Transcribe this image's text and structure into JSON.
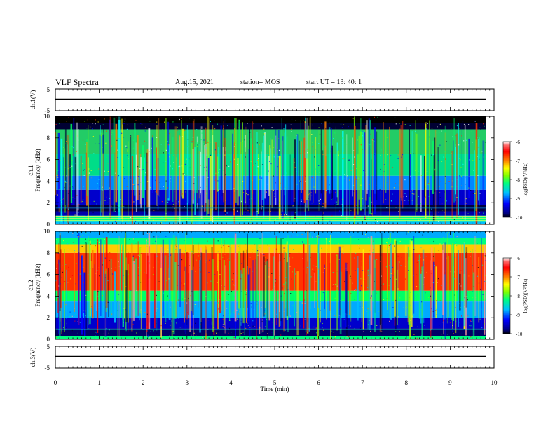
{
  "header": {
    "title": "VLF Spectra",
    "date": "Aug.15, 2021",
    "station": "station= MOS",
    "start": "start  UT =   13: 40: 1"
  },
  "colors": {
    "colormap": [
      "#000000",
      "#00007f",
      "#0000ff",
      "#00bfff",
      "#00ff7f",
      "#7fff00",
      "#ffff00",
      "#ff7f00",
      "#ff0000",
      "#ff6666",
      "#ffffff"
    ]
  },
  "chart_data": [
    {
      "type": "line",
      "name": "ch1-voltage",
      "ylabel": "ch.1(V)",
      "ylim": [
        -5,
        5
      ],
      "y_ticks": [
        "5",
        "-5"
      ],
      "x": [
        0,
        10
      ],
      "y": [
        0,
        0
      ],
      "xlim": [
        0,
        10
      ]
    },
    {
      "type": "heatmap",
      "name": "ch1-spectrogram",
      "ylabel": "ch.1\nFrequency (kHz)",
      "ylim": [
        0,
        10
      ],
      "y_ticks": [
        "0",
        "2",
        "4",
        "6",
        "8",
        "10"
      ],
      "xlim": [
        0,
        9.85
      ],
      "colorbar": {
        "label": "log(PSD)(V²/Hz)",
        "range": [
          -10,
          -6
        ],
        "ticks": [
          "-6",
          "-7",
          "-8",
          "-9",
          "-10"
        ]
      }
    },
    {
      "type": "heatmap",
      "name": "ch2-spectrogram",
      "ylabel": "ch.2\nFrequency (kHz)",
      "ylim": [
        0,
        10
      ],
      "y_ticks": [
        "0",
        "2",
        "4",
        "6",
        "8",
        "10"
      ],
      "xlim": [
        0,
        9.85
      ],
      "colorbar": {
        "label": "log(PSD)(V²/Hz)",
        "range": [
          -10,
          -6
        ],
        "ticks": [
          "-6",
          "-7",
          "-8",
          "-9",
          "-10"
        ]
      }
    },
    {
      "type": "line",
      "name": "ch3-voltage",
      "ylabel": "ch.3(V)",
      "ylim": [
        -5,
        5
      ],
      "y_ticks": [
        "5",
        "-5"
      ],
      "x": [
        0,
        10
      ],
      "y": [
        0,
        0
      ],
      "xlim": [
        0,
        10
      ]
    }
  ],
  "x_axis": {
    "label": "Time  (min)",
    "range": [
      0,
      10
    ],
    "ticks": [
      "0",
      "1",
      "2",
      "3",
      "4",
      "5",
      "6",
      "7",
      "8",
      "9",
      "10"
    ]
  },
  "labels": {
    "ch1_v": "ch.1(V)",
    "ch1_freq_a": "ch.1",
    "ch1_freq_b": "Frequency (kHz)",
    "ch2_freq_a": "ch.2",
    "ch2_freq_b": "Frequency (kHz)",
    "ch3_v": "ch.3(V)",
    "cbar": "log(PSD)(V²/Hz)",
    "v_top": "5",
    "v_bot": "-5",
    "f_ticks": [
      "0",
      "2",
      "4",
      "6",
      "8",
      "10"
    ],
    "cb_ticks": [
      "-6",
      "-7",
      "-8",
      "-9",
      "-10"
    ]
  }
}
